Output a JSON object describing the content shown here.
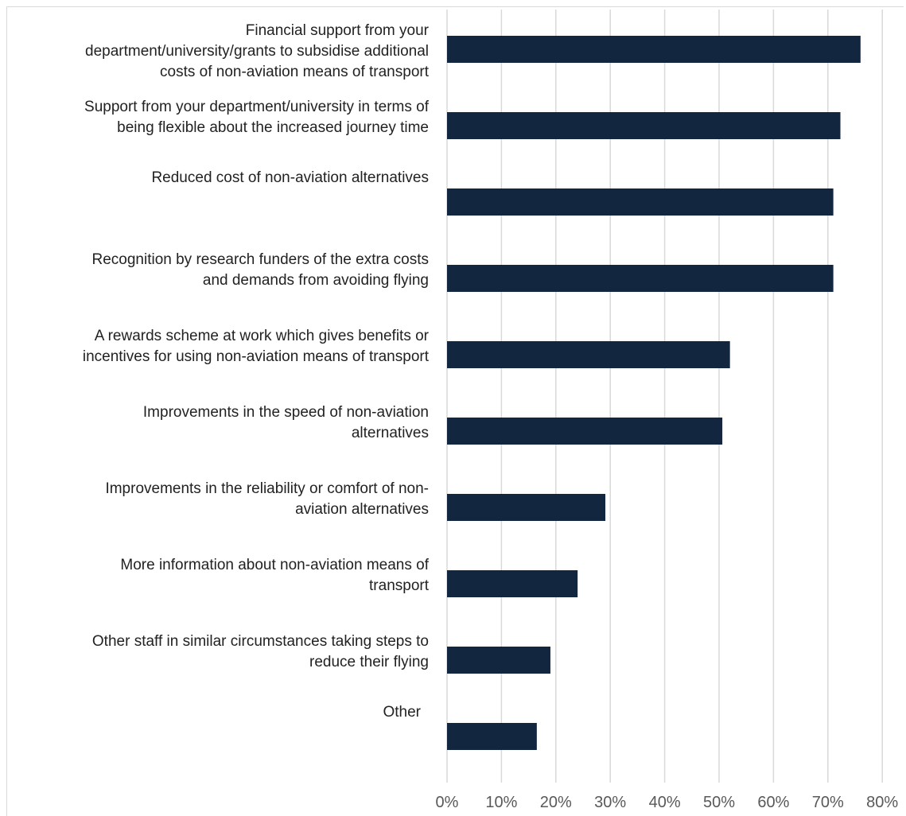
{
  "chart_data": {
    "type": "bar",
    "orientation": "horizontal",
    "categories": [
      "Financial support from your\ndepartment/university/grants to subsidise additional\ncosts of non-aviation means of transport",
      "Support from your department/university in terms of\nbeing flexible about the increased journey time",
      "Reduced cost of non-aviation alternatives",
      "Recognition by research funders of the extra costs\nand demands from avoiding flying",
      "A rewards scheme at work which gives benefits or\nincentives for using non-aviation means of transport",
      "Improvements in the speed of non-aviation\nalternatives",
      "Improvements in the reliability or comfort of non-\naviation alternatives",
      "More information about non-aviation means of\ntransport",
      "Other staff in similar circumstances taking steps to\nreduce their flying",
      "Other"
    ],
    "values": [
      76,
      72.3,
      71,
      71,
      52,
      50.6,
      29.1,
      24,
      19,
      16.5
    ],
    "xlim": [
      0,
      80
    ],
    "xticks": [
      "0%",
      "10%",
      "20%",
      "30%",
      "40%",
      "50%",
      "60%",
      "70%",
      "80%"
    ],
    "grid": true,
    "bar_color": "#13263f"
  }
}
